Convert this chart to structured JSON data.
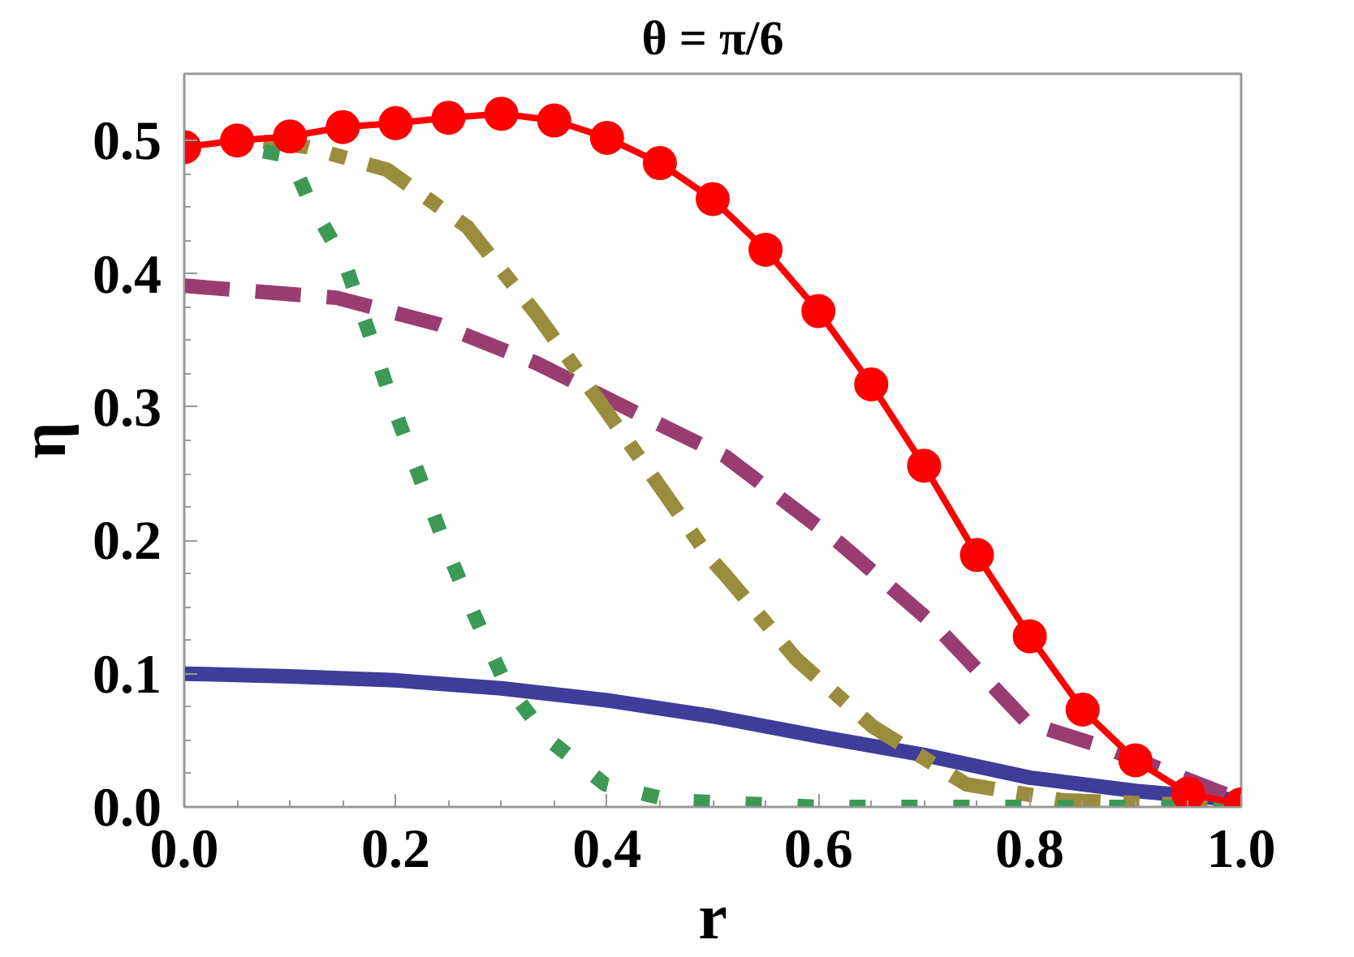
{
  "chart_data": {
    "type": "line",
    "title": "θ = π/6",
    "xlabel": "r",
    "ylabel": "η",
    "xlim": [
      0,
      1
    ],
    "ylim": [
      0,
      0.55
    ],
    "xticks": [
      {
        "value": 0,
        "label": "0.0"
      },
      0.2,
      0.4,
      0.6,
      0.8,
      {
        "value": 1,
        "label": "1.0"
      }
    ],
    "yticks": [
      {
        "value": 0,
        "label": "0.0"
      },
      0.1,
      0.2,
      0.3,
      0.4,
      0.5
    ],
    "grid": false,
    "series": [
      {
        "color": "#3f3d99",
        "line_style": "solid",
        "marker": "none",
        "x": [
          0,
          0.1,
          0.2,
          0.3,
          0.4,
          0.5,
          0.6,
          0.7,
          0.8,
          0.9,
          1.0
        ],
        "values": [
          0.1,
          0.098,
          0.095,
          0.089,
          0.08,
          0.068,
          0.053,
          0.039,
          0.022,
          0.012,
          0.005
        ]
      },
      {
        "color": "#993d71",
        "line_style": "dashed",
        "marker": "none",
        "x": [
          0,
          0.144,
          0.241,
          0.333,
          0.442,
          0.512,
          0.62,
          0.712,
          0.798,
          0.87,
          1.0
        ],
        "values": [
          0.391,
          0.382,
          0.362,
          0.333,
          0.29,
          0.263,
          0.198,
          0.135,
          0.063,
          0.045,
          0.005
        ]
      },
      {
        "color": "#998d3d",
        "line_style": "dashdot",
        "marker": "none",
        "x": [
          0.075,
          0.117,
          0.192,
          0.268,
          0.333,
          0.393,
          0.453,
          0.496,
          0.512,
          0.579,
          0.652,
          0.74,
          0.831,
          1.0
        ],
        "values": [
          0.499,
          0.495,
          0.478,
          0.435,
          0.37,
          0.304,
          0.237,
          0.188,
          0.174,
          0.111,
          0.06,
          0.017,
          0.005,
          0.0
        ]
      },
      {
        "color": "#3d9956",
        "line_style": "dotted",
        "marker": "none",
        "x": [
          0.075,
          0.1,
          0.117,
          0.152,
          0.176,
          0.198,
          0.222,
          0.247,
          0.274,
          0.303,
          0.344,
          0.398,
          0.46,
          0.6,
          0.8,
          1.0
        ],
        "values": [
          0.492,
          0.488,
          0.457,
          0.408,
          0.353,
          0.3,
          0.249,
          0.196,
          0.145,
          0.094,
          0.051,
          0.017,
          0.005,
          0.0,
          0.0,
          0.0
        ]
      },
      {
        "color": "#ff0000",
        "line_style": "solid",
        "marker": "circle",
        "x": [
          0,
          0.05,
          0.1,
          0.15,
          0.2,
          0.25,
          0.3,
          0.35,
          0.4,
          0.45,
          0.5,
          0.55,
          0.6,
          0.65,
          0.7,
          0.75,
          0.8,
          0.85,
          0.9,
          0.95,
          1.0
        ],
        "values": [
          0.495,
          0.5,
          0.503,
          0.51,
          0.513,
          0.517,
          0.52,
          0.515,
          0.502,
          0.483,
          0.456,
          0.418,
          0.372,
          0.317,
          0.256,
          0.189,
          0.128,
          0.073,
          0.035,
          0.01,
          0.002
        ]
      }
    ]
  }
}
